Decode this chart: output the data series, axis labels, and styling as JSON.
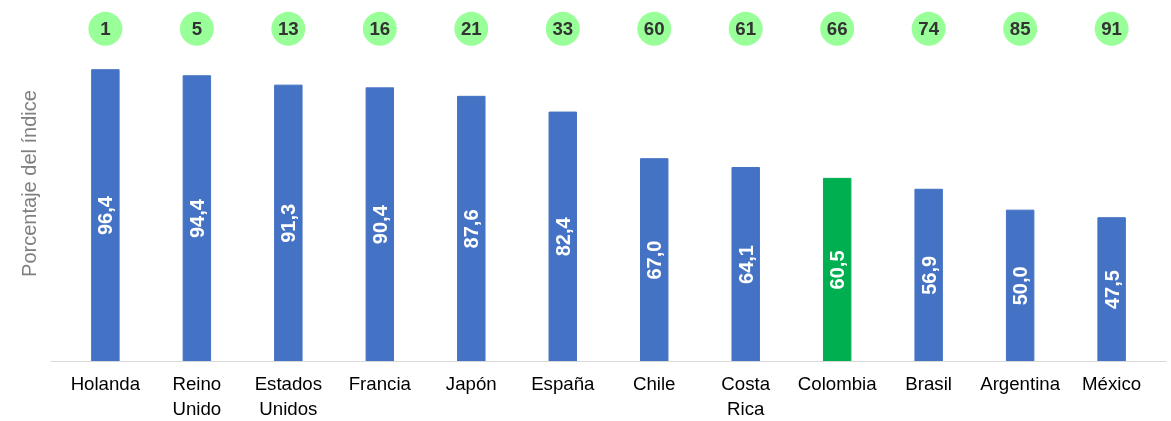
{
  "chart_data": {
    "type": "bar",
    "ylabel": "Porcentaje del índice",
    "categories": [
      "Holanda",
      "Reino Unido",
      "Estados Unidos",
      "Francia",
      "Japón",
      "España",
      "Chile",
      "Costa Rica",
      "Colombia",
      "Brasil",
      "Argentina",
      "México"
    ],
    "values": [
      96.4,
      94.4,
      91.3,
      90.4,
      87.6,
      82.4,
      67.0,
      64.1,
      60.5,
      56.9,
      50.0,
      47.5
    ],
    "value_labels": [
      "96,4",
      "94,4",
      "91,3",
      "90,4",
      "87,6",
      "82,4",
      "67,0",
      "64,1",
      "60,5",
      "56,9",
      "50,0",
      "47,5"
    ],
    "colors": [
      "#4472c4",
      "#4472c4",
      "#4472c4",
      "#4472c4",
      "#4472c4",
      "#4472c4",
      "#4472c4",
      "#4472c4",
      "#00b050",
      "#4472c4",
      "#4472c4",
      "#4472c4"
    ],
    "annotations": [
      "1",
      "5",
      "13",
      "16",
      "21",
      "33",
      "60",
      "61",
      "66",
      "74",
      "85",
      "91"
    ],
    "tick_labels": "x",
    "grid": false
  }
}
